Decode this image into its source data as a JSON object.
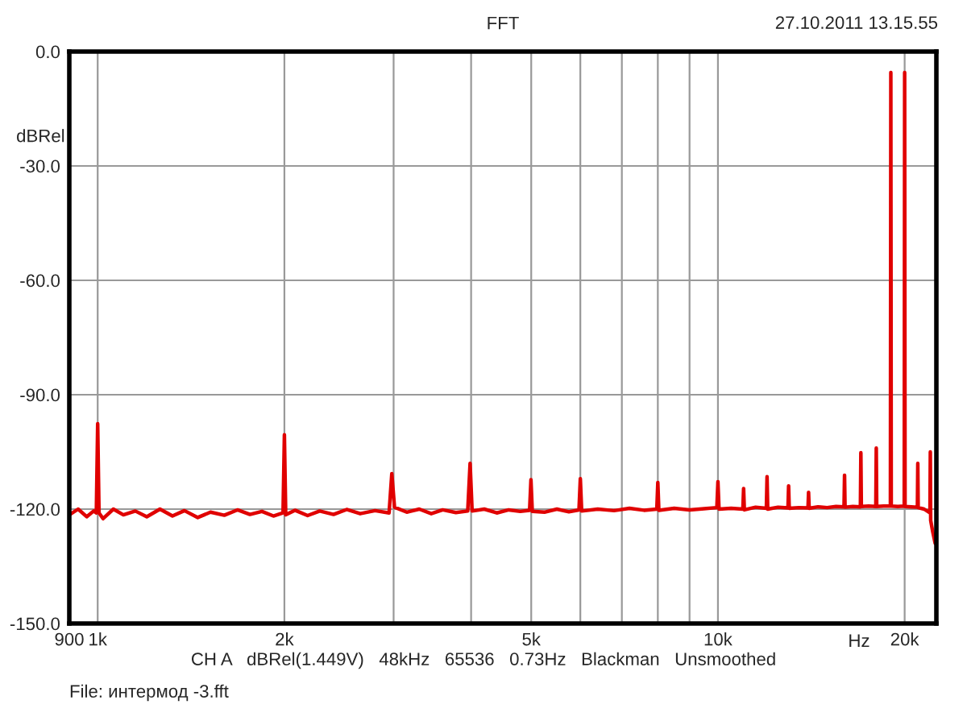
{
  "chart_data": {
    "type": "line",
    "title": "FFT",
    "xlabel": "Hz",
    "ylabel": "dBRel",
    "annotations": [
      "27.10.2011 13.15.55",
      "CH A   dBRel(1.449V)   48kHz   65536   0.73Hz   Blackman   Unsmoothed",
      "File: интермод -3.fft"
    ],
    "log": "x",
    "grid": true,
    "legend": false,
    "marker": "none",
    "line_style": "solid",
    "xlim": [
      900,
      22500
    ],
    "ylim": [
      -150,
      0
    ],
    "xticks": [
      {
        "value": 900,
        "label": "900"
      },
      {
        "value": 1000,
        "label": "1k"
      },
      {
        "value": 2000,
        "label": "2k"
      },
      {
        "value": 3000,
        "label": null
      },
      {
        "value": 4000,
        "label": null
      },
      {
        "value": 5000,
        "label": "5k"
      },
      {
        "value": 6000,
        "label": null
      },
      {
        "value": 7000,
        "label": null
      },
      {
        "value": 8000,
        "label": null
      },
      {
        "value": 9000,
        "label": null
      },
      {
        "value": 10000,
        "label": "10k"
      },
      {
        "value": 20000,
        "label": "20k"
      }
    ],
    "yticks": [
      {
        "value": 0,
        "label": "0.0"
      },
      {
        "value": -30,
        "label": "-30.0"
      },
      {
        "value": -60,
        "label": "-60.0"
      },
      {
        "value": -90,
        "label": "-90.0"
      },
      {
        "value": -120,
        "label": "-120.0"
      },
      {
        "value": -150,
        "label": "-150.0"
      }
    ],
    "series": [
      {
        "color": "#e00000",
        "x": [
          900,
          930,
          960,
          985,
          995,
          1000,
          1005,
          1020,
          1060,
          1100,
          1150,
          1200,
          1260,
          1320,
          1380,
          1450,
          1520,
          1600,
          1680,
          1760,
          1840,
          1920,
          1990,
          2000,
          2010,
          2080,
          2180,
          2280,
          2400,
          2520,
          2650,
          2800,
          2950,
          2980,
          3010,
          3150,
          3300,
          3450,
          3600,
          3780,
          3950,
          3985,
          4015,
          4200,
          4400,
          4600,
          4800,
          4970,
          4995,
          5020,
          5250,
          5500,
          5750,
          5970,
          6000,
          6030,
          6400,
          6800,
          7200,
          7600,
          7970,
          8000,
          8030,
          8500,
          9000,
          9500,
          9960,
          10000,
          10040,
          10500,
          10970,
          11000,
          11030,
          11500,
          11970,
          12000,
          12030,
          12500,
          12970,
          13000,
          13030,
          13500,
          13970,
          14000,
          14030,
          14500,
          15000,
          15500,
          15970,
          16000,
          16030,
          16500,
          16970,
          17000,
          17030,
          17500,
          17970,
          18000,
          18030,
          18500,
          18970,
          19000,
          19030,
          19500,
          19970,
          20000,
          20030,
          20500,
          20970,
          21000,
          21030,
          21500,
          21970,
          22000,
          22030,
          22200,
          22400
        ],
        "values": [
          -121.5,
          -120,
          -122,
          -120.5,
          -121,
          -97.6,
          -121,
          -122.5,
          -120,
          -121.5,
          -120.5,
          -122,
          -120,
          -121.8,
          -120.4,
          -122.2,
          -120.8,
          -121.6,
          -120.2,
          -121.4,
          -120.6,
          -121.8,
          -121,
          -100.5,
          -121.5,
          -120.3,
          -121.7,
          -120.5,
          -121.4,
          -120.1,
          -121.2,
          -120.4,
          -121,
          -110.7,
          -119.5,
          -120.8,
          -120,
          -121.2,
          -120.2,
          -120.9,
          -120.5,
          -108,
          -120.5,
          -120,
          -121,
          -120.2,
          -120.6,
          -120.3,
          -112.3,
          -120.6,
          -120.8,
          -120,
          -120.7,
          -120.2,
          -112,
          -120.5,
          -120,
          -120.4,
          -119.8,
          -120.3,
          -120,
          -113,
          -120.3,
          -119.8,
          -120.2,
          -119.9,
          -119.6,
          -112.8,
          -120,
          -119.8,
          -120,
          -114.6,
          -120.2,
          -119.5,
          -119.8,
          -111.5,
          -120,
          -119.5,
          -119.7,
          -113.9,
          -119.8,
          -119.6,
          -119.7,
          -115.6,
          -119.8,
          -119.4,
          -119.6,
          -119.3,
          -119.4,
          -111.1,
          -119.5,
          -119.3,
          -119.4,
          -105.2,
          -119.3,
          -119.2,
          -119.3,
          -104,
          -119.3,
          -119.2,
          -119.2,
          -5.5,
          -119.2,
          -119.3,
          -119.2,
          -5.5,
          -119.3,
          -119.4,
          -119.5,
          -108,
          -119.6,
          -120,
          -121,
          -105,
          -123,
          -126,
          -129
        ]
      }
    ]
  }
}
